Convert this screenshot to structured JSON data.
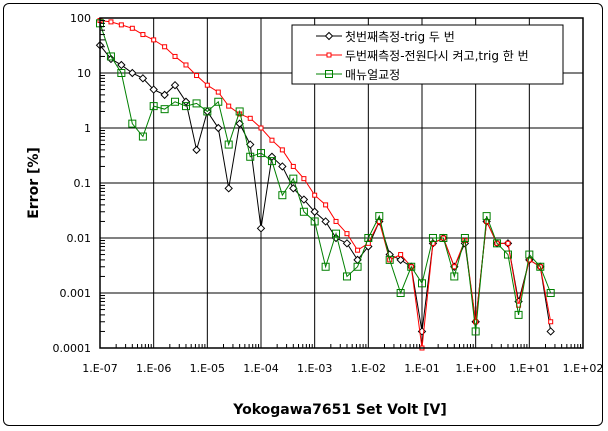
{
  "chart_data": {
    "type": "line",
    "scale": "log-log",
    "xlabel": "Yokogawa7651 Set Volt [V]",
    "ylabel": "Error [%]",
    "xlim": [
      1e-07,
      100
    ],
    "ylim": [
      0.0001,
      100
    ],
    "grid": true,
    "legend_position": "top-right",
    "x_tick_labels": [
      "1.E-07",
      "1.E-06",
      "1.E-05",
      "1.E-04",
      "1.E-03",
      "1.E-02",
      "1.E-01",
      "1.E+00",
      "1.E+01",
      "1.E+02"
    ],
    "y_tick_labels": [
      "100",
      "10",
      "1",
      "0.1",
      "0.01",
      "0.001",
      "0.0001"
    ],
    "x": [
      1e-07,
      1.6e-07,
      2.5e-07,
      4e-07,
      6.3e-07,
      1e-06,
      1.6e-06,
      2.5e-06,
      4e-06,
      6.3e-06,
      1e-05,
      1.6e-05,
      2.5e-05,
      4e-05,
      6.3e-05,
      0.0001,
      0.00016,
      0.00025,
      0.0004,
      0.00063,
      0.001,
      0.0016,
      0.0025,
      0.004,
      0.0063,
      0.01,
      0.016,
      0.025,
      0.04,
      0.063,
      0.1,
      0.16,
      0.25,
      0.4,
      0.63,
      1,
      1.6,
      2.5,
      4,
      6.3,
      10,
      16,
      25
    ],
    "series": [
      {
        "name": "첫번째측정-trig 두 번",
        "color": "#000000",
        "marker": "diamond",
        "values": [
          32,
          18,
          14,
          10,
          8,
          5,
          4,
          6,
          3,
          0.4,
          2,
          1,
          0.08,
          1.2,
          0.5,
          0.015,
          0.3,
          0.2,
          0.08,
          0.05,
          0.03,
          0.02,
          0.01,
          0.008,
          0.004,
          0.007,
          0.02,
          0.005,
          0.004,
          0.003,
          0.0002,
          0.008,
          0.01,
          0.003,
          0.008,
          0.0003,
          0.02,
          0.008,
          0.008,
          0.0007,
          0.004,
          0.003,
          0.0002
        ]
      },
      {
        "name": "두번째측정-전원다시 켜고,trig 한 번",
        "color": "#ff0000",
        "marker": "square-small",
        "values": [
          90,
          85,
          75,
          65,
          50,
          40,
          30,
          20,
          14,
          9,
          6,
          4.5,
          2.5,
          1.8,
          1.5,
          1.0,
          0.6,
          0.4,
          0.2,
          0.12,
          0.06,
          0.04,
          0.02,
          0.012,
          0.006,
          0.008,
          0.02,
          0.004,
          0.005,
          0.003,
          0.0001,
          0.008,
          0.01,
          0.003,
          0.009,
          0.0003,
          0.02,
          0.008,
          0.008,
          0.0006,
          0.004,
          0.003,
          0.0003
        ]
      },
      {
        "name": "매뉴얼교정",
        "color": "#008000",
        "marker": "square",
        "values": [
          80,
          20,
          10,
          1.2,
          0.7,
          2.5,
          2.2,
          3,
          2.5,
          2.8,
          2,
          3,
          0.5,
          2,
          0.3,
          0.35,
          0.25,
          0.06,
          0.12,
          0.03,
          0.02,
          0.003,
          0.012,
          0.002,
          0.003,
          0.01,
          0.025,
          0.004,
          0.001,
          0.003,
          0.0015,
          0.01,
          0.01,
          0.002,
          0.01,
          0.0002,
          0.025,
          0.008,
          0.005,
          0.0004,
          0.005,
          0.003,
          0.001
        ]
      }
    ]
  }
}
